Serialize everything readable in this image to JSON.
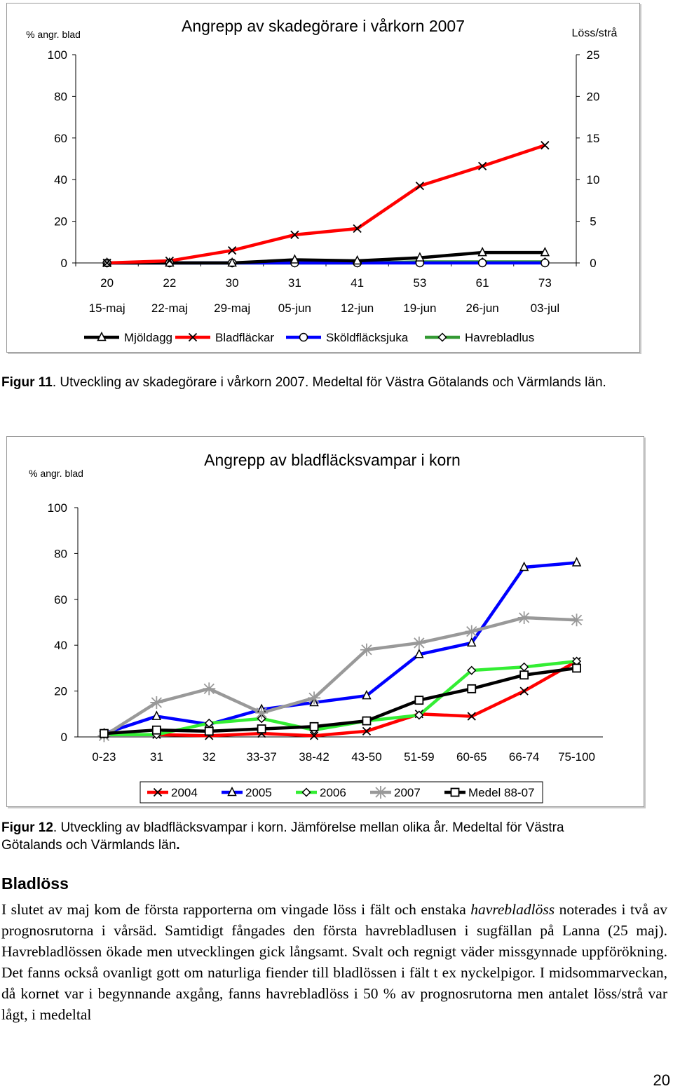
{
  "chart_data": [
    {
      "type": "line",
      "title": "Angrepp av skadegörare i vårkorn 2007",
      "ylabel": "% angr. blad",
      "y2label": "Löss/strå",
      "ylim": [
        0,
        100
      ],
      "y2lim": [
        0,
        25
      ],
      "yticks": [
        "0",
        "20",
        "40",
        "60",
        "80",
        "100"
      ],
      "y2ticks": [
        "0",
        "5",
        "10",
        "15",
        "20",
        "25"
      ],
      "x_top_labels": [
        "20",
        "22",
        "30",
        "31",
        "41",
        "53",
        "61",
        "73"
      ],
      "categories": [
        "15-maj",
        "22-maj",
        "29-maj",
        "05-jun",
        "12-jun",
        "19-jun",
        "26-jun",
        "03-jul"
      ],
      "grid": false,
      "legend_position": "bottom",
      "series": [
        {
          "name": "Mjöldagg",
          "color": "#000000",
          "marker": "triangle",
          "values": [
            0,
            0,
            0,
            1.5,
            1,
            2.5,
            5,
            5
          ]
        },
        {
          "name": "Bladfläckar",
          "color": "#ff0000",
          "marker": "x",
          "values": [
            0,
            1,
            6,
            13.5,
            16.5,
            37,
            46.5,
            56.5
          ]
        },
        {
          "name": "Sköldfläcksjuka",
          "color": "#0000ff",
          "marker": "circle",
          "values": [
            0,
            0,
            0,
            0,
            0,
            0,
            0,
            0
          ]
        },
        {
          "name": "Havrebladlus",
          "color": "#339933",
          "marker": "diamond",
          "values": [
            0,
            0,
            0,
            0,
            0,
            0.5,
            0.5,
            0.5
          ]
        }
      ]
    },
    {
      "type": "line",
      "title": "Angrepp av bladfläcksvampar i korn",
      "ylabel": "% angr. blad",
      "ylim": [
        0,
        100
      ],
      "yticks": [
        "0",
        "20",
        "40",
        "60",
        "80",
        "100"
      ],
      "categories": [
        "0-23",
        "31",
        "32",
        "33-37",
        "38-42",
        "43-50",
        "51-59",
        "60-65",
        "66-74",
        "75-100"
      ],
      "grid": false,
      "legend_position": "bottom",
      "series": [
        {
          "name": "2004",
          "color": "#ff0000",
          "marker": "x",
          "values": [
            1,
            1,
            0.5,
            1.5,
            0.5,
            2.5,
            10,
            9,
            20,
            33
          ]
        },
        {
          "name": "2005",
          "color": "#0000ff",
          "marker": "triangle",
          "values": [
            1.5,
            9,
            5.5,
            12,
            15,
            18,
            36,
            41,
            74,
            76
          ]
        },
        {
          "name": "2006",
          "color": "#33ee33",
          "marker": "diamond",
          "values": [
            1,
            1,
            6,
            8,
            3,
            7,
            9.5,
            29,
            30.5,
            33
          ]
        },
        {
          "name": "2007",
          "color": "#999999",
          "marker": "star",
          "values": [
            0.5,
            15,
            21,
            10.5,
            17,
            38,
            41,
            46,
            52,
            51
          ]
        },
        {
          "name": "Medel 88-07",
          "color": "#000000",
          "marker": "square",
          "values": [
            1.5,
            3,
            2.5,
            3.5,
            4.5,
            7,
            16,
            21,
            27,
            30
          ]
        }
      ]
    }
  ],
  "captions": {
    "fig11_label": "Figur 11",
    "fig11_text": ". Utveckling av skadegörare i vårkorn 2007. Medeltal för Västra Götalands och Värmlands län.",
    "fig12_label": "Figur 12",
    "fig12_text": ". Utveckling av bladfläcksvampar i korn. Jämförelse mellan olika år. Medeltal för Västra Götalands och Värmlands län",
    "fig12_end": "."
  },
  "section": {
    "heading": "Bladlöss",
    "body_1": "I slutet av maj kom de första rapporterna om vingade löss i fält och enstaka ",
    "body_italic": "havrebladlöss",
    "body_2": " noterades i två av prognosrutorna i vårsäd. Samtidigt fångades den första havrebladlusen i sugfällan på Lanna (25 maj). Havrebladlössen ökade men utvecklingen gick långsamt. Svalt och regnigt väder missgynnade uppförökning. Det fanns också ovanligt gott om naturliga fiender till bladlössen i fält t ex nyckelpigor. I midsommarveckan, då kornet var i begynnande axgång, fanns havrebladlöss i 50 % av prognosrutorna men antalet löss/strå var lågt, i medeltal"
  },
  "page_number": "20"
}
